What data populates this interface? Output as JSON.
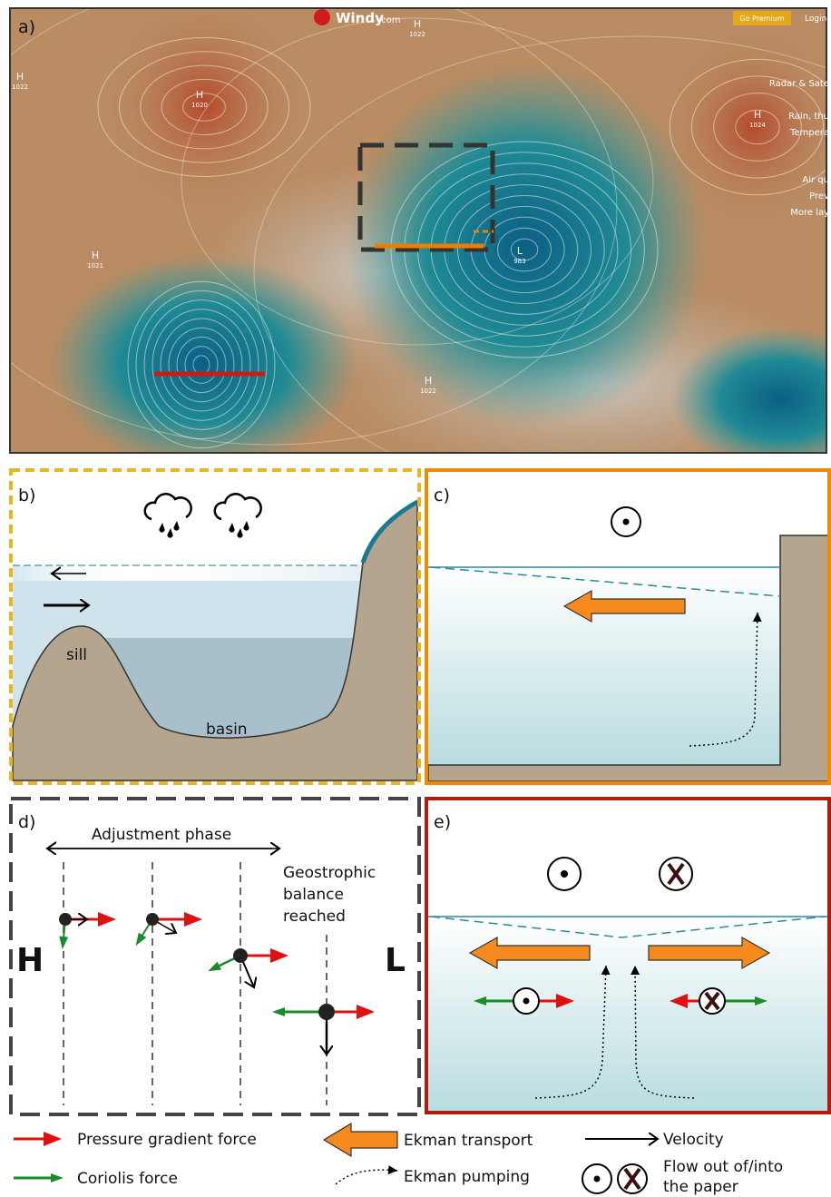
{
  "panel_a": {
    "label": "a)",
    "brand": "Windy",
    "brand_suffix": ".com",
    "premium": "Go Premium",
    "login": "Login",
    "menu": [
      "Radar & Sate",
      "Rain, thu",
      "Tempera",
      "Air qu",
      "Prev",
      "More lay"
    ],
    "pressure_centers": [
      {
        "symbol": "H",
        "value": "1022"
      },
      {
        "symbol": "H",
        "value": "1020"
      },
      {
        "symbol": "H",
        "value": "1021"
      },
      {
        "symbol": "L",
        "value": "983"
      },
      {
        "symbol": "H",
        "value": "1024"
      },
      {
        "symbol": "H",
        "value": "1022"
      },
      {
        "symbol": "H",
        "value": "1022"
      }
    ]
  },
  "panel_b": {
    "label": "b)",
    "sill": "sill",
    "basin": "basin"
  },
  "panel_c": {
    "label": "c)"
  },
  "panel_d": {
    "label": "d)",
    "phase": "Adjustment phase",
    "balance": [
      "Geostrophic",
      "balance",
      "reached"
    ],
    "high": "H",
    "low": "L"
  },
  "panel_e": {
    "label": "e)"
  },
  "legend": {
    "pgf": "Pressure gradient force",
    "coriolis": "Coriolis force",
    "ekman_transport": "Ekman transport",
    "ekman_pumping": "Ekman pumping",
    "velocity": "Velocity",
    "flow": [
      "Flow out of/into",
      "the paper"
    ]
  }
}
